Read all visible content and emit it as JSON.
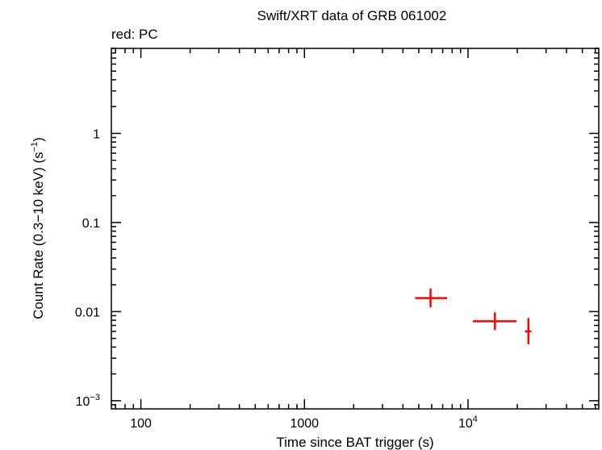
{
  "chart_data": {
    "type": "scatter",
    "title": "Swift/XRT data of GRB 061002",
    "subtitle": "red: PC",
    "xlabel": "Time since BAT trigger (s)",
    "ylabel_main": "Count Rate (0.3−10 keV) (s",
    "ylabel_sup": "−1",
    "ylabel_end": ")",
    "x_scale": "log",
    "y_scale": "log",
    "xlim": [
      66,
      63000
    ],
    "ylim": [
      0.00081,
      9
    ],
    "x_ticks": [
      {
        "value": 100,
        "label": "100"
      },
      {
        "value": 1000,
        "label": "1000"
      },
      {
        "value": 10000,
        "label": "10",
        "sup": "4"
      }
    ],
    "y_ticks": [
      {
        "value": 1,
        "label": "1"
      },
      {
        "value": 0.1,
        "label": "0.1"
      },
      {
        "value": 0.01,
        "label": "0.01"
      },
      {
        "value": 0.001,
        "label": "10",
        "sup": "−3"
      }
    ],
    "grid": false,
    "series": [
      {
        "color": "#ff0000",
        "points": [
          {
            "x": 5900,
            "xlo": 4750,
            "xhi": 7450,
            "y": 0.0142,
            "ylo": 0.0112,
            "yhi": 0.0182
          },
          {
            "x": 14600,
            "xlo": 10700,
            "xhi": 19800,
            "y": 0.0078,
            "ylo": 0.0062,
            "yhi": 0.0098
          },
          {
            "x": 23400,
            "xlo": 22300,
            "xhi": 24400,
            "y": 0.006,
            "ylo": 0.0043,
            "yhi": 0.0085
          }
        ]
      }
    ]
  }
}
